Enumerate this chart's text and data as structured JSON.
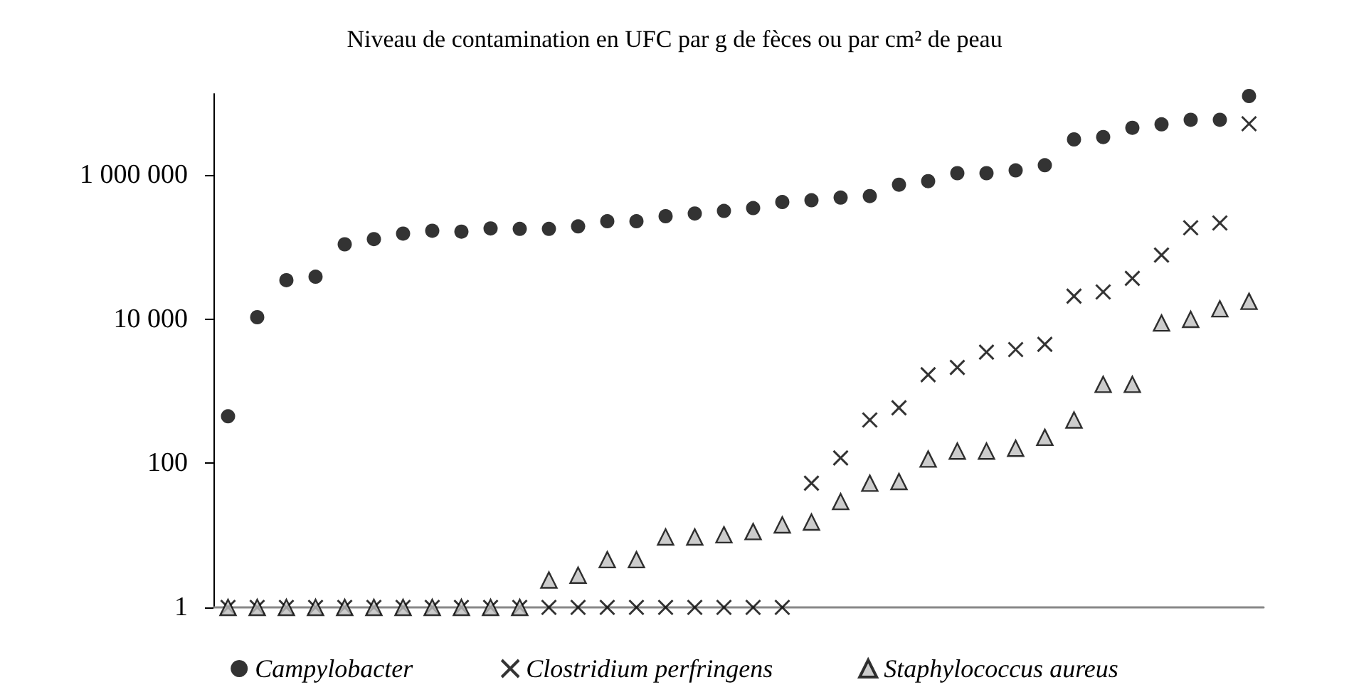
{
  "chart_data": {
    "type": "scatter",
    "title": "Niveau de contamination en UFC par g de fèces ou par cm² de peau",
    "categories": [
      null,
      null,
      null,
      null,
      null,
      null,
      null,
      null,
      null,
      null,
      null,
      null,
      null,
      null,
      null,
      null,
      null,
      null,
      null,
      null,
      null,
      null,
      null,
      null,
      null,
      null,
      null,
      null,
      null,
      null,
      null,
      null,
      null,
      null,
      null,
      null
    ],
    "series": [
      {
        "name": "Campylobacter",
        "color": "#000000",
        "marker": "circle",
        "values": [
          450,
          10700,
          35000,
          39000,
          110000,
          130000,
          155000,
          170000,
          165000,
          183000,
          180000,
          180000,
          195000,
          230000,
          230000,
          270000,
          295000,
          320000,
          350000,
          425000,
          450000,
          490000,
          515000,
          740000,
          830000,
          1070000,
          1070000,
          1170000,
          1380000,
          3150000,
          3400000,
          4570000,
          5100000,
          5900000,
          5900000,
          12600000
        ]
      },
      {
        "name": "Clostridium perfringens",
        "color": "#000000",
        "marker": "cross",
        "values": [
          1,
          1,
          1,
          1,
          1,
          1,
          1,
          1,
          1,
          1,
          1,
          1,
          1,
          1,
          1,
          1,
          1,
          1,
          1,
          1,
          53,
          119,
          400,
          590,
          1700,
          2150,
          3500,
          3800,
          4500,
          21000,
          24000,
          37000,
          78000,
          187000,
          218000,
          5200000
        ]
      },
      {
        "name": "Staphylococcus aureus",
        "color": "#bfbfbf",
        "marker": "triangle",
        "values": [
          1,
          1,
          1,
          1,
          1,
          1,
          1,
          1,
          1,
          1,
          1,
          2.4,
          2.8,
          4.6,
          4.6,
          9.5,
          9.5,
          10.2,
          11.3,
          14,
          15.3,
          29.5,
          53,
          56,
          115,
          148,
          148,
          162,
          230,
          400,
          1250,
          1250,
          8900,
          10000,
          14000,
          17800
        ]
      }
    ],
    "log": "y",
    "ylim": [
      1,
      13500000
    ],
    "yticks": [
      1,
      100,
      {
        "value": 10000,
        "label": "10 000"
      },
      {
        "value": 1000000,
        "label": "1 000 000"
      }
    ],
    "tick_labels": "y",
    "grid": false,
    "legend": "bottom"
  }
}
